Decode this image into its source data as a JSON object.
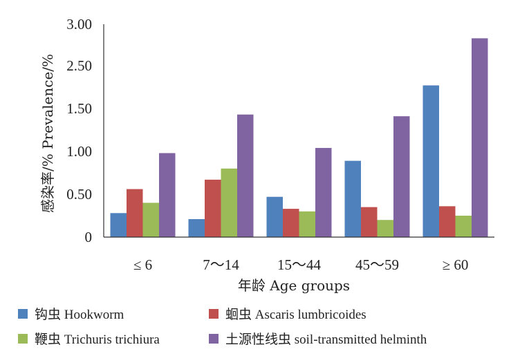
{
  "chart_data": {
    "type": "bar",
    "ylabel": "感染率/%  Prevalence/%",
    "xlabel": "年龄 Age groups",
    "y_tick_labels": [
      "0",
      "0.50",
      "1.00",
      "1.50",
      "2.50",
      "3.00"
    ],
    "categories": [
      "≤ 6",
      "7～14",
      "15～44",
      "45～59",
      "≥ 60"
    ],
    "series": [
      {
        "name": "钩虫 Hookworm",
        "values": [
          0.28,
          0.21,
          0.47,
          0.89,
          1.77
        ],
        "color": "#4F81BD"
      },
      {
        "name": "蛔虫 Ascaris lumbricoides",
        "values": [
          0.56,
          0.67,
          0.33,
          0.35,
          0.36
        ],
        "color": "#C0504D"
      },
      {
        "name": "鞭虫 Trichuris trichiura",
        "values": [
          0.4,
          0.8,
          0.3,
          0.2,
          0.25
        ],
        "color": "#9BBB59"
      },
      {
        "name": "土源性线虫 soil-transmitted helminth",
        "values": [
          0.98,
          1.43,
          1.04,
          1.41,
          2.33
        ],
        "color": "#8064A2"
      }
    ],
    "grid": false,
    "legend_placement": "bottom"
  },
  "legend": [
    {
      "label": "钩虫 Hookworm"
    },
    {
      "label": "蛔虫 Ascaris lumbricoides"
    },
    {
      "label": "鞭虫 Trichuris trichiura"
    },
    {
      "label": "土源性线虫 soil-transmitted helminth"
    }
  ]
}
